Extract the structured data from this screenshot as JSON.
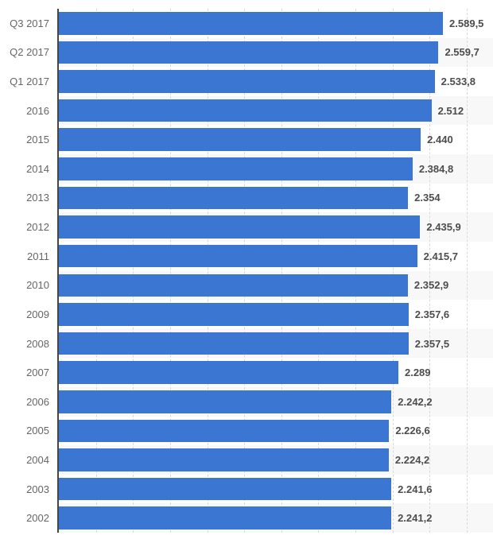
{
  "chart_data": {
    "type": "bar",
    "orientation": "horizontal",
    "title": "",
    "xlabel": "",
    "ylabel": "",
    "categories": [
      "Q3 2017",
      "Q2 2017",
      "Q1 2017",
      "2016",
      "2015",
      "2014",
      "2013",
      "2012",
      "2011",
      "2010",
      "2009",
      "2008",
      "2007",
      "2006",
      "2005",
      "2004",
      "2003",
      "2002"
    ],
    "values": [
      2589.5,
      2559.7,
      2533.8,
      2512,
      2440,
      2384.8,
      2354,
      2435.9,
      2415.7,
      2352.9,
      2357.6,
      2357.5,
      2289,
      2242.2,
      2226.6,
      2224.2,
      2241.6,
      2241.2
    ],
    "value_labels": [
      "2.589,5",
      "2.559,7",
      "2.533,8",
      "2.512",
      "2.440",
      "2.384,8",
      "2.354",
      "2.435,9",
      "2.415,7",
      "2.352,9",
      "2.357,6",
      "2.357,5",
      "2.289",
      "2.242,2",
      "2.226,6",
      "2.224,2",
      "2.241,6",
      "2.241,2"
    ],
    "xlim": [
      0,
      2927
    ],
    "gridline_interval": 250,
    "grid": true,
    "legend": false,
    "bar_color": "#3b76d2",
    "stripe_color": "#f8f8f8",
    "gridline_color": "#d9d9d9",
    "axis_line_color": "#464646",
    "category_label_color": "#666666",
    "value_label_color": "#4d4d4d"
  }
}
